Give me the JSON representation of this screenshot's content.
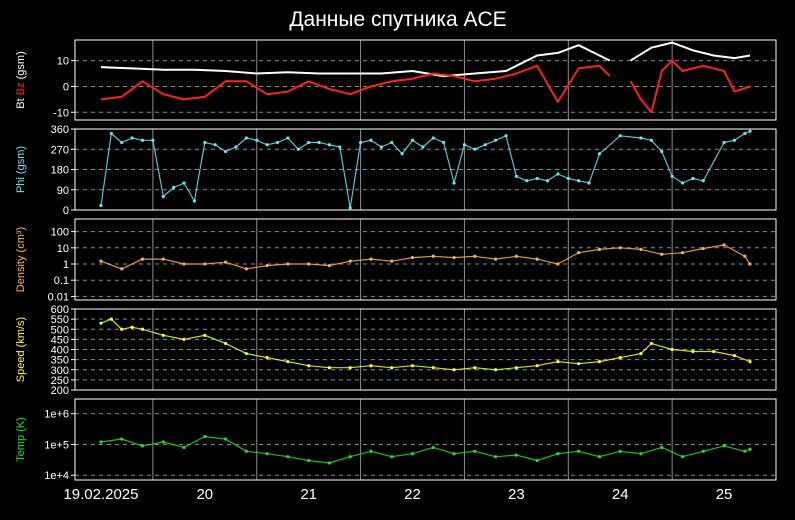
{
  "title": "Данные спутника ACE",
  "colors": {
    "background": "#000000",
    "frame": "#ffffff",
    "grid": "#8c8c8c",
    "bt": "#ffffff",
    "bz": "#ff2020",
    "phi": "#66e6f5",
    "density": "#ffb347",
    "speed": "#ffff1a",
    "temp": "#22e022"
  },
  "x_axis": {
    "ticks": [
      "19.02.2025",
      "20",
      "21",
      "22",
      "23",
      "24",
      "25"
    ],
    "range_days": [
      18.75,
      25.5
    ]
  },
  "chart_data": [
    {
      "type": "line",
      "title": "",
      "ylabel_parts": [
        {
          "text": "Bt",
          "color": "#ffffff"
        },
        {
          "text": "Bz",
          "color": "#ff2020"
        },
        {
          "text": "(gsm)",
          "color": "#ffffff"
        }
      ],
      "ylim": [
        -13,
        18
      ],
      "yticks": [
        -10,
        0,
        10
      ],
      "gridlines": [
        -10,
        0,
        10
      ],
      "series": [
        {
          "name": "Bt",
          "color": "#ffffff",
          "x": [
            19.0,
            19.3,
            19.6,
            19.9,
            20.2,
            20.5,
            20.8,
            21.1,
            21.4,
            21.7,
            22.0,
            22.3,
            22.6,
            22.9,
            23.0,
            23.2,
            23.4,
            23.6,
            23.8,
            23.9,
            24.0,
            24.1,
            24.3,
            24.5,
            24.7,
            24.9,
            25.1,
            25.25
          ],
          "y": [
            7.5,
            7,
            6.5,
            6.5,
            6,
            5,
            5.5,
            5,
            5,
            5,
            6,
            4,
            5,
            6,
            8,
            12,
            13,
            16,
            12,
            10,
            null,
            10,
            15,
            17,
            14,
            12,
            11,
            12
          ]
        },
        {
          "name": "Bz",
          "color": "#ff2020",
          "x": [
            19.0,
            19.2,
            19.4,
            19.6,
            19.8,
            20.0,
            20.2,
            20.4,
            20.6,
            20.8,
            21.0,
            21.2,
            21.4,
            21.6,
            21.8,
            22.0,
            22.2,
            22.4,
            22.6,
            22.8,
            23.0,
            23.2,
            23.4,
            23.6,
            23.8,
            23.9,
            24.0,
            24.1,
            24.2,
            24.3,
            24.4,
            24.5,
            24.6,
            24.8,
            25.0,
            25.1,
            25.25
          ],
          "y": [
            -5,
            -4,
            2,
            -3,
            -5,
            -4,
            2,
            2,
            -3,
            -2,
            2,
            -1,
            -3,
            0,
            2,
            3,
            5,
            4,
            2,
            3,
            5,
            8,
            -6,
            7,
            8,
            4,
            null,
            2,
            -5,
            -10,
            6,
            10,
            6,
            8,
            6,
            -2,
            0
          ]
        }
      ]
    },
    {
      "type": "scatter",
      "title": "",
      "ylabel_parts": [
        {
          "text": "Phi (gsm)",
          "color": "#66e6f5"
        }
      ],
      "ylim": [
        0,
        360
      ],
      "yticks": [
        0,
        90,
        180,
        270,
        360
      ],
      "gridlines": [
        90,
        180,
        270
      ],
      "series": [
        {
          "name": "Phi",
          "color": "#66e6f5",
          "x": [
            19.0,
            19.1,
            19.2,
            19.3,
            19.4,
            19.5,
            19.6,
            19.7,
            19.8,
            19.9,
            20.0,
            20.1,
            20.2,
            20.3,
            20.4,
            20.5,
            20.6,
            20.7,
            20.8,
            20.9,
            21.0,
            21.1,
            21.2,
            21.3,
            21.4,
            21.5,
            21.6,
            21.7,
            21.8,
            21.9,
            22.0,
            22.1,
            22.2,
            22.3,
            22.4,
            22.5,
            22.6,
            22.7,
            22.8,
            22.9,
            23.0,
            23.1,
            23.2,
            23.3,
            23.4,
            23.5,
            23.6,
            23.7,
            23.8,
            24.0,
            24.2,
            24.3,
            24.4,
            24.5,
            24.6,
            24.7,
            24.8,
            25.0,
            25.1,
            25.2,
            25.25
          ],
          "y": [
            20,
            340,
            300,
            320,
            310,
            310,
            60,
            100,
            120,
            40,
            300,
            290,
            260,
            280,
            320,
            310,
            290,
            300,
            320,
            270,
            300,
            300,
            290,
            280,
            10,
            300,
            310,
            280,
            300,
            250,
            310,
            280,
            320,
            300,
            120,
            290,
            270,
            290,
            310,
            330,
            150,
            130,
            140,
            130,
            160,
            140,
            130,
            120,
            250,
            330,
            320,
            310,
            260,
            150,
            120,
            140,
            130,
            300,
            310,
            340,
            350
          ]
        }
      ]
    },
    {
      "type": "scatter",
      "title": "",
      "ylabel_parts": [
        {
          "text": "Density (cm³)",
          "color": "#ffb347"
        }
      ],
      "yscale": "log",
      "ylim": [
        0.006,
        600
      ],
      "yticks": [
        0.01,
        0.1,
        1,
        10,
        100
      ],
      "ytick_labels": [
        "0.01",
        "0.1",
        "1",
        "10",
        "100"
      ],
      "gridlines": [
        0.01,
        0.1,
        1,
        10,
        100
      ],
      "series": [
        {
          "name": "Density",
          "color": "#ffb347",
          "x": [
            19.0,
            19.2,
            19.4,
            19.6,
            19.8,
            20.0,
            20.2,
            20.4,
            20.6,
            20.8,
            21.0,
            21.2,
            21.4,
            21.6,
            21.8,
            22.0,
            22.2,
            22.4,
            22.6,
            22.8,
            23.0,
            23.2,
            23.4,
            23.6,
            23.8,
            24.0,
            24.2,
            24.4,
            24.6,
            24.8,
            25.0,
            25.2,
            25.25
          ],
          "y": [
            1.5,
            0.5,
            2,
            2,
            1,
            1,
            1.3,
            0.5,
            0.8,
            1,
            1,
            0.8,
            1.5,
            2,
            1.5,
            2.5,
            3,
            2.5,
            3,
            2,
            3,
            2,
            1,
            5,
            8,
            10,
            8,
            4,
            5,
            9,
            15,
            3,
            1
          ]
        }
      ]
    },
    {
      "type": "scatter",
      "title": "",
      "ylabel_parts": [
        {
          "text": "Speed (km/s)",
          "color": "#ffff1a"
        }
      ],
      "ylim": [
        200,
        600
      ],
      "yticks": [
        200,
        250,
        300,
        350,
        400,
        450,
        500,
        550,
        600
      ],
      "gridlines": [
        250,
        300,
        350,
        400,
        450,
        500,
        550
      ],
      "series": [
        {
          "name": "Speed",
          "color": "#ffff1a",
          "x": [
            19.0,
            19.1,
            19.2,
            19.3,
            19.4,
            19.6,
            19.8,
            20.0,
            20.2,
            20.4,
            20.6,
            20.8,
            21.0,
            21.2,
            21.4,
            21.6,
            21.8,
            22.0,
            22.2,
            22.4,
            22.6,
            22.8,
            23.0,
            23.2,
            23.4,
            23.6,
            23.8,
            24.0,
            24.2,
            24.3,
            24.5,
            24.7,
            24.9,
            25.1,
            25.25
          ],
          "y": [
            530,
            550,
            500,
            510,
            500,
            470,
            450,
            470,
            430,
            380,
            360,
            340,
            320,
            310,
            310,
            320,
            310,
            320,
            310,
            300,
            310,
            300,
            310,
            320,
            340,
            330,
            340,
            360,
            380,
            430,
            400,
            390,
            390,
            370,
            340
          ]
        }
      ]
    },
    {
      "type": "scatter",
      "title": "",
      "ylabel_parts": [
        {
          "text": "Temp (K)",
          "color": "#22e022"
        }
      ],
      "yscale": "log",
      "ylim": [
        7000,
        3000000
      ],
      "yticks": [
        10000,
        100000,
        1000000
      ],
      "ytick_labels": [
        "1e+4",
        "1e+5",
        "1e+6"
      ],
      "gridlines": [
        10000,
        100000,
        1000000
      ],
      "series": [
        {
          "name": "Temp",
          "color": "#22e022",
          "x": [
            19.0,
            19.2,
            19.4,
            19.6,
            19.8,
            20.0,
            20.2,
            20.4,
            20.6,
            20.8,
            21.0,
            21.2,
            21.4,
            21.6,
            21.8,
            22.0,
            22.2,
            22.4,
            22.6,
            22.8,
            23.0,
            23.2,
            23.4,
            23.6,
            23.8,
            24.0,
            24.2,
            24.4,
            24.6,
            24.8,
            25.0,
            25.2,
            25.25
          ],
          "y": [
            120000,
            150000,
            90000,
            120000,
            80000,
            180000,
            150000,
            60000,
            50000,
            40000,
            30000,
            25000,
            40000,
            60000,
            40000,
            50000,
            80000,
            50000,
            60000,
            40000,
            45000,
            30000,
            50000,
            60000,
            40000,
            60000,
            50000,
            80000,
            40000,
            60000,
            90000,
            60000,
            70000
          ]
        }
      ]
    }
  ]
}
